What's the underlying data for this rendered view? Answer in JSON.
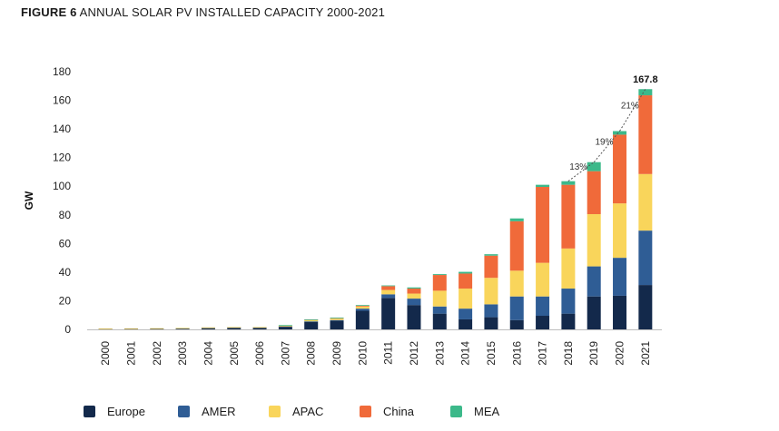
{
  "figure": {
    "label": "FIGURE 6",
    "title": "ANNUAL SOLAR PV INSTALLED CAPACITY 2000-2021"
  },
  "colors": {
    "Europe": "#13294b",
    "AMER": "#2f5d95",
    "APAC": "#f9d55b",
    "China": "#f06a3a",
    "MEA": "#3cb98a"
  },
  "chart_data": {
    "type": "bar",
    "stacked": true,
    "title": "ANNUAL SOLAR PV INSTALLED CAPACITY 2000-2021",
    "xlabel": "",
    "ylabel": "GW",
    "ylim": [
      0,
      180
    ],
    "yticks": [
      0,
      20,
      40,
      60,
      80,
      100,
      120,
      140,
      160,
      180
    ],
    "categories": [
      "2000",
      "2001",
      "2002",
      "2003",
      "2004",
      "2005",
      "2006",
      "2007",
      "2008",
      "2009",
      "2010",
      "2011",
      "2012",
      "2013",
      "2014",
      "2015",
      "2016",
      "2017",
      "2018",
      "2019",
      "2020",
      "2021"
    ],
    "series": [
      {
        "name": "Europe",
        "values": [
          0.1,
          0.2,
          0.3,
          0.4,
          0.8,
          1.0,
          1.0,
          1.8,
          5.2,
          6.0,
          13.0,
          22.0,
          17.0,
          11.0,
          7.0,
          8.5,
          6.5,
          9.5,
          11.0,
          23.0,
          23.5,
          31.0
        ]
      },
      {
        "name": "AMER",
        "values": [
          0.0,
          0.0,
          0.0,
          0.1,
          0.1,
          0.1,
          0.1,
          0.2,
          0.4,
          0.5,
          1.5,
          2.5,
          4.5,
          5.0,
          7.5,
          9.0,
          16.5,
          13.5,
          17.5,
          21.0,
          26.5,
          38.0
        ]
      },
      {
        "name": "APAC",
        "values": [
          0.2,
          0.3,
          0.4,
          0.4,
          0.3,
          0.4,
          0.4,
          0.5,
          0.8,
          1.0,
          1.5,
          3.0,
          3.5,
          11.0,
          14.0,
          18.5,
          18.0,
          23.5,
          28.0,
          36.5,
          38.0,
          39.5
        ]
      },
      {
        "name": "China",
        "values": [
          0.0,
          0.0,
          0.0,
          0.0,
          0.0,
          0.0,
          0.0,
          0.0,
          0.1,
          0.2,
          0.5,
          2.7,
          3.5,
          11.0,
          10.5,
          15.5,
          34.5,
          53.0,
          44.5,
          30.0,
          48.0,
          55.0
        ]
      },
      {
        "name": "MEA",
        "values": [
          0.0,
          0.0,
          0.0,
          0.0,
          0.0,
          0.0,
          0.0,
          0.1,
          0.1,
          0.1,
          0.3,
          0.5,
          0.8,
          0.6,
          1.2,
          1.0,
          2.0,
          1.5,
          2.5,
          6.3,
          2.5,
          4.3
        ]
      }
    ],
    "annotations": [
      {
        "text": "13%",
        "from_year": "2018",
        "to_year": "2019"
      },
      {
        "text": "19%",
        "from_year": "2019",
        "to_year": "2020"
      },
      {
        "text": "21%",
        "from_year": "2020",
        "to_year": "2021"
      }
    ],
    "total_label": {
      "year": "2021",
      "text": "167.8"
    },
    "legend_position": "bottom-left"
  }
}
